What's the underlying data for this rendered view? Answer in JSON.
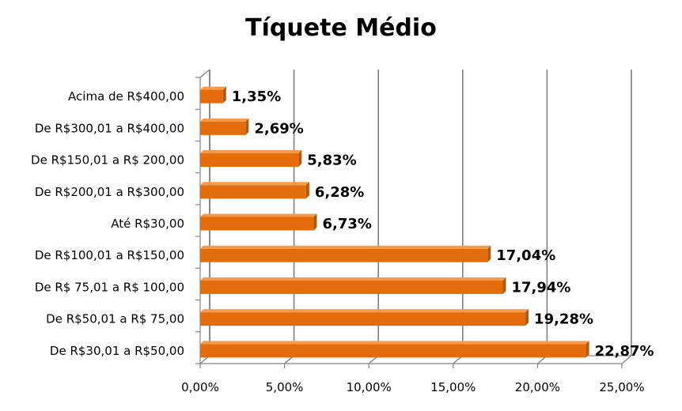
{
  "chart_data": {
    "type": "bar",
    "orientation": "horizontal",
    "title": "Tíquete Médio",
    "categories": [
      "Acima de R$400,00",
      "De R$300,01 a R$400,00",
      "De R$150,01 a R$ 200,00",
      "De R$200,01 a R$300,00",
      "Até R$30,00",
      "De R$100,01 a R$150,00",
      "De R$ 75,01 a R$ 100,00",
      "De R$50,01 a R$ 75,00",
      "De R$30,01 a R$50,00"
    ],
    "values": [
      1.35,
      2.69,
      5.83,
      6.28,
      6.73,
      17.04,
      17.94,
      19.28,
      22.87
    ],
    "value_labels": [
      "1,35%",
      "2,69%",
      "5,83%",
      "6,28%",
      "6,73%",
      "17,04%",
      "17,94%",
      "19,28%",
      "22,87%"
    ],
    "xlim": [
      0,
      25
    ],
    "x_ticks": [
      0,
      5,
      10,
      15,
      20,
      25
    ],
    "x_tick_labels": [
      "0,00%",
      "5,00%",
      "10,00%",
      "15,00%",
      "20,00%",
      "25,00%"
    ],
    "xlabel": "",
    "ylabel": "",
    "grid": true,
    "legend": "none",
    "bar_color": "#E46C0A",
    "bar_side_color": "#B8560A",
    "grid_color": "#7F7F7F"
  }
}
